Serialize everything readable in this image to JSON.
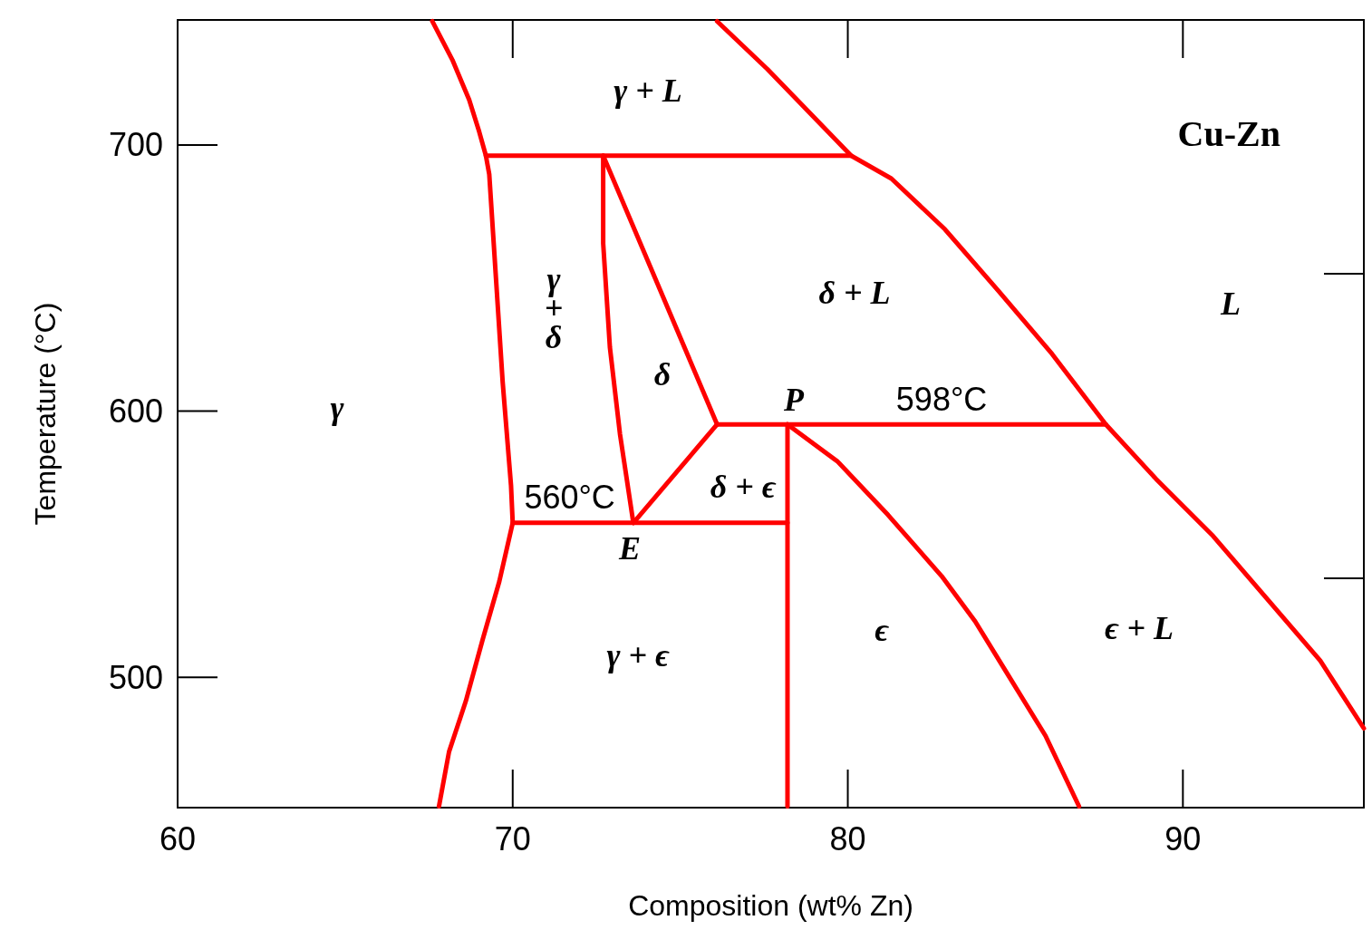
{
  "chart_data": {
    "type": "line",
    "title": "Cu-Zn",
    "xlabel": "Composition (wt% Zn)",
    "ylabel": "Temperature (°C)",
    "xlim": [
      60,
      95.4
    ],
    "xticks": [
      60,
      70,
      80,
      90
    ],
    "ylim": [
      451,
      747
    ],
    "yticks": [
      500,
      600,
      700
    ],
    "line_style": "solid",
    "series": [
      {
        "color": "#ff0000",
        "x": [
          67.6,
          68.2,
          68.7,
          69.0,
          69.2,
          69.3,
          69.5,
          69.7,
          69.95,
          70.0,
          69.6,
          69.1,
          68.6,
          68.1,
          67.8
        ],
        "values": [
          746.5,
          732,
          717,
          705,
          696,
          689,
          650,
          611,
          572,
          558,
          536,
          514,
          491,
          472,
          451.5
        ]
      },
      {
        "color": "#ff0000",
        "x": [
          69.2,
          80.1
        ],
        "values": [
          696,
          696
        ]
      },
      {
        "color": "#ff0000",
        "x": [
          76.1,
          77.6,
          80.1,
          81.3,
          82.9,
          84.5,
          86.1,
          87.7,
          89.2,
          90.9,
          92.5,
          94.1,
          95.4
        ],
        "values": [
          746.5,
          728.5,
          696,
          687.4,
          668.3,
          645.1,
          621.4,
          595,
          574.5,
          553.1,
          529.6,
          506.2,
          480.8
        ]
      },
      {
        "color": "#ff0000",
        "x": [
          72.7,
          72.7,
          72.9,
          73.2,
          73.6
        ],
        "values": [
          696,
          663,
          624,
          591.5,
          558
        ]
      },
      {
        "color": "#ff0000",
        "x": [
          72.7,
          76.1
        ],
        "values": [
          696,
          595
        ]
      },
      {
        "color": "#ff0000",
        "x": [
          76.1,
          87.7
        ],
        "values": [
          595,
          595
        ]
      },
      {
        "color": "#ff0000",
        "x": [
          76.1,
          73.6
        ],
        "values": [
          595,
          558
        ]
      },
      {
        "color": "#ff0000",
        "x": [
          70.0,
          78.2
        ],
        "values": [
          558,
          558
        ]
      },
      {
        "color": "#ff0000",
        "x": [
          78.2,
          78.2
        ],
        "values": [
          595,
          451.5
        ]
      },
      {
        "color": "#ff0000",
        "x": [
          78.2,
          79.7,
          81.2,
          82.8,
          83.8,
          84.8,
          85.9,
          86.9
        ],
        "values": [
          595,
          581,
          561,
          538,
          521,
          500.5,
          478,
          451.5
        ]
      }
    ],
    "annotations": [
      "γ + L",
      "γ\n+\nδ",
      "δ",
      "δ + L",
      "L",
      "γ",
      {
        "text": "P",
        "x": 78.2,
        "y": 595
      },
      {
        "text": "598°C",
        "x": 82.8,
        "y": 595
      },
      {
        "text": "560°C",
        "x": 71.7,
        "y": 558
      },
      "δ + ϵ",
      {
        "text": "E",
        "x": 73.6,
        "y": 558
      },
      "ϵ",
      "ϵ + L",
      "γ + ϵ"
    ]
  }
}
